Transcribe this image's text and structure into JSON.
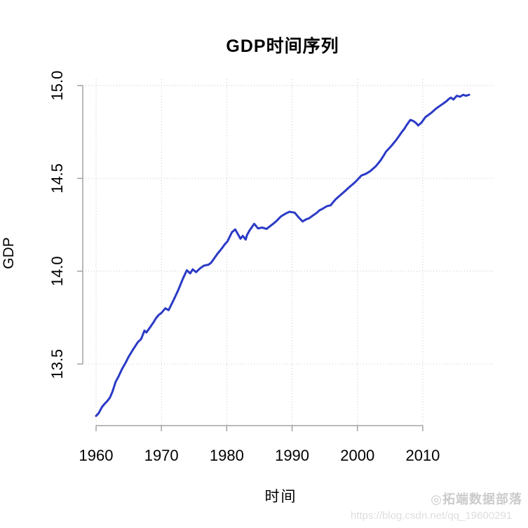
{
  "title": "GDP时间序列",
  "xlabel": "时间",
  "ylabel": "GDP",
  "watermark": {
    "brand": "◎拓端数据部落",
    "url": "https://blog.csdn.net/qq_19600291"
  },
  "colors": {
    "line": "#2a3ac6",
    "grid": "#c6c6c6",
    "axis": "#a3a3a3",
    "text": "#000000",
    "watermark": "#cbcbcb"
  },
  "chart_data": {
    "type": "line",
    "title": "GDP时间序列",
    "xlabel": "时间",
    "ylabel": "GDP",
    "grid": "dotted, at each tick",
    "legend": "none",
    "xlim": [
      1957.96,
      2021.49
    ],
    "ylim": [
      13.168,
      15.034
    ],
    "xticks": [
      1960,
      1970,
      1980,
      1990,
      2000,
      2010
    ],
    "yticks": [
      13.5,
      14.0,
      14.5,
      15.0
    ],
    "x": [
      1960.0,
      1960.4,
      1960.9,
      1961.3,
      1961.7,
      1962.1,
      1962.5,
      1963.0,
      1963.4,
      1964.0,
      1964.5,
      1965.0,
      1965.7,
      1966.4,
      1966.9,
      1967.4,
      1967.7,
      1968.3,
      1968.7,
      1969.2,
      1969.6,
      1970.0,
      1970.6,
      1971.1,
      1971.8,
      1972.2,
      1972.6,
      1973.3,
      1973.9,
      1974.4,
      1974.8,
      1975.3,
      1975.9,
      1976.5,
      1977.2,
      1977.6,
      1977.9,
      1978.6,
      1979.0,
      1979.4,
      1979.7,
      1980.1,
      1980.8,
      1981.3,
      1981.7,
      1982.1,
      1982.45,
      1982.9,
      1983.1,
      1983.5,
      1984.2,
      1984.8,
      1985.4,
      1986.1,
      1986.9,
      1987.2,
      1987.6,
      1988.3,
      1989.0,
      1989.6,
      1990.4,
      1991.0,
      1991.6,
      1992.2,
      1992.6,
      1993.0,
      1993.8,
      1994.2,
      1994.6,
      1995.3,
      1995.9,
      1996.2,
      1996.6,
      1997.0,
      1997.4,
      1997.8,
      1998.2,
      1998.6,
      1999.0,
      1999.4,
      1999.8,
      2000.2,
      2000.6,
      2001.3,
      2002.0,
      2002.8,
      2003.2,
      2003.6,
      2004.0,
      2004.4,
      2004.8,
      2005.2,
      2005.6,
      2006.0,
      2006.4,
      2006.8,
      2007.2,
      2007.5,
      2007.8,
      2008.1,
      2008.5,
      2008.9,
      2009.3,
      2009.8,
      2010.4,
      2010.8,
      2011.2,
      2011.6,
      2012.0,
      2012.4,
      2012.8,
      2013.2,
      2013.6,
      2014.0,
      2014.3,
      2014.7,
      2015.2,
      2015.7,
      2016.2,
      2016.6,
      2017.1
    ],
    "y": [
      13.22,
      13.235,
      13.268,
      13.285,
      13.3,
      13.318,
      13.35,
      13.405,
      13.43,
      13.475,
      13.505,
      13.54,
      13.58,
      13.618,
      13.635,
      13.68,
      13.67,
      13.7,
      13.72,
      13.748,
      13.765,
      13.775,
      13.8,
      13.79,
      13.84,
      13.87,
      13.9,
      13.96,
      14.005,
      13.988,
      14.01,
      13.995,
      14.015,
      14.03,
      14.035,
      14.045,
      14.06,
      14.095,
      14.112,
      14.13,
      14.145,
      14.16,
      14.21,
      14.225,
      14.2,
      14.175,
      14.19,
      14.17,
      14.195,
      14.22,
      14.255,
      14.23,
      14.235,
      14.228,
      14.25,
      14.258,
      14.27,
      14.295,
      14.31,
      14.32,
      14.315,
      14.29,
      14.268,
      14.28,
      14.285,
      14.295,
      14.315,
      14.328,
      14.335,
      14.35,
      14.355,
      14.368,
      14.385,
      14.398,
      14.41,
      14.422,
      14.435,
      14.448,
      14.46,
      14.472,
      14.485,
      14.5,
      14.515,
      14.525,
      14.54,
      14.565,
      14.582,
      14.6,
      14.622,
      14.645,
      14.66,
      14.675,
      14.692,
      14.71,
      14.73,
      14.75,
      14.768,
      14.785,
      14.8,
      14.815,
      14.81,
      14.8,
      14.785,
      14.8,
      14.83,
      14.84,
      14.85,
      14.862,
      14.875,
      14.885,
      14.895,
      14.905,
      14.915,
      14.928,
      14.935,
      14.925,
      14.945,
      14.94,
      14.95,
      14.945,
      14.95
    ]
  }
}
